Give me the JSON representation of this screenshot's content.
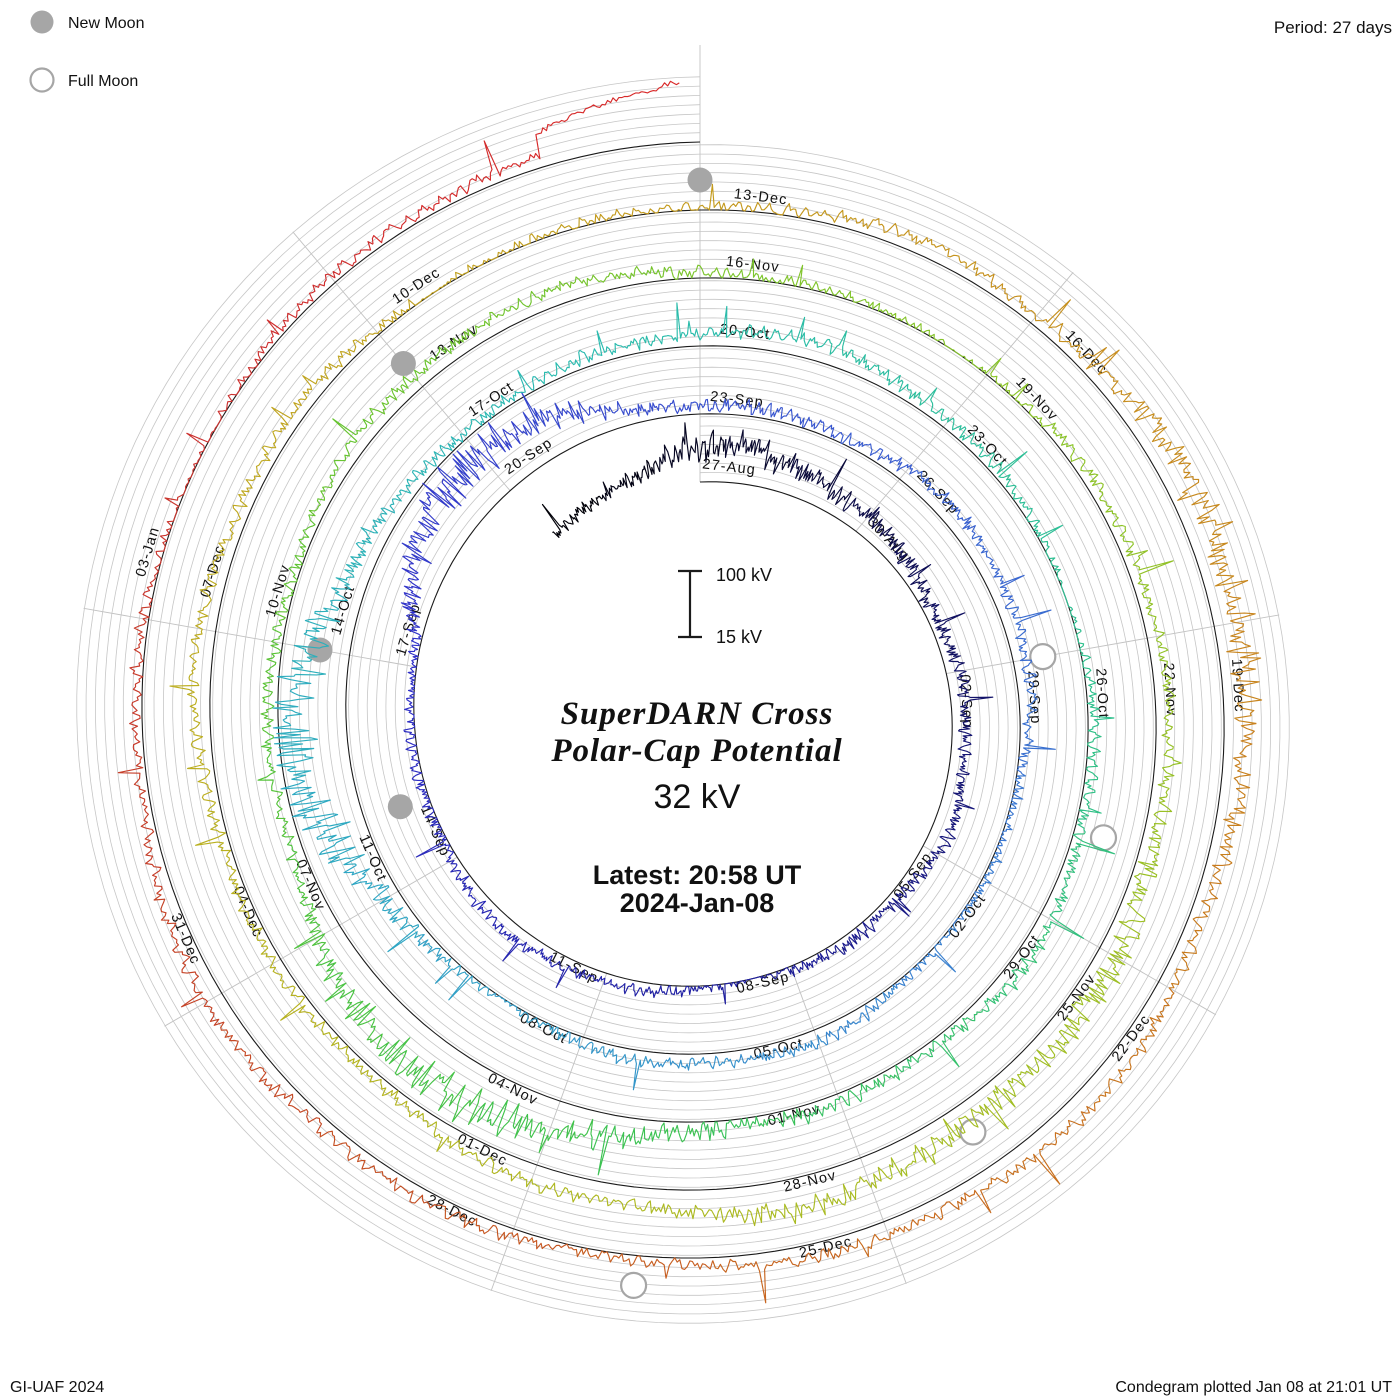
{
  "header": {
    "period_label": "Period: 27 days"
  },
  "legend": {
    "new_moon": "New Moon",
    "full_moon": "Full Moon"
  },
  "center": {
    "title_line1": "SuperDARN Cross",
    "title_line2": "Polar-Cap Potential",
    "current_value": "32 kV",
    "latest_line1": "Latest: 20:58 UT",
    "latest_line2": "2024-Jan-08",
    "scale_top_label": "100 kV",
    "scale_bottom_label": "15 kV"
  },
  "footer": {
    "left": "GI-UAF 2024",
    "right": "Condegram plotted Jan 08 at 21:01 UT"
  },
  "colors": {
    "accent_red": "#e04848",
    "grid_gray": "#c6c6c6",
    "spoke_gray": "#c2c2c2",
    "baseline_black": "#1b1b1b",
    "moon_gray": "#a6a6a6",
    "label_ink": "#2b2b2b"
  },
  "chart_data": {
    "type": "line",
    "variant": "condegram-spiral",
    "title": "SuperDARN Cross Polar-Cap Potential",
    "latest_value_kv": 32,
    "latest_time": "20:58 UT",
    "latest_date": "2024-Jan-08",
    "period_days": 27,
    "rotations_shown": 5,
    "scale": {
      "min_kv": 15,
      "max_kv": 100
    },
    "grid_kv_lines": [
      27,
      39,
      51,
      63,
      75,
      87,
      99
    ],
    "series_synthesized": true,
    "date_labels": [
      {
        "label": "27-Aug",
        "day": 0
      },
      {
        "label": "30-Aug",
        "day": 3
      },
      {
        "label": "02-Sep",
        "day": 6
      },
      {
        "label": "05-Sep",
        "day": 9
      },
      {
        "label": "08-Sep",
        "day": 12
      },
      {
        "label": "11-Sep",
        "day": 15
      },
      {
        "label": "14-Sep",
        "day": 18
      },
      {
        "label": "17-Sep",
        "day": 21
      },
      {
        "label": "20-Sep",
        "day": 24
      },
      {
        "label": "23-Sep",
        "day": 27
      },
      {
        "label": "26-Sep",
        "day": 30
      },
      {
        "label": "29-Sep",
        "day": 33
      },
      {
        "label": "02-Oct",
        "day": 36
      },
      {
        "label": "05-Oct",
        "day": 39
      },
      {
        "label": "08-Oct",
        "day": 42
      },
      {
        "label": "11-Oct",
        "day": 45
      },
      {
        "label": "14-Oct",
        "day": 48
      },
      {
        "label": "17-Oct",
        "day": 51
      },
      {
        "label": "20-Oct",
        "day": 54
      },
      {
        "label": "23-Oct",
        "day": 57
      },
      {
        "label": "26-Oct",
        "day": 60
      },
      {
        "label": "29-Oct",
        "day": 63
      },
      {
        "label": "01-Nov",
        "day": 66
      },
      {
        "label": "04-Nov",
        "day": 69
      },
      {
        "label": "07-Nov",
        "day": 72
      },
      {
        "label": "10-Nov",
        "day": 75
      },
      {
        "label": "13-Nov",
        "day": 78
      },
      {
        "label": "16-Nov",
        "day": 81
      },
      {
        "label": "19-Nov",
        "day": 84
      },
      {
        "label": "22-Nov",
        "day": 87
      },
      {
        "label": "25-Nov",
        "day": 90
      },
      {
        "label": "28-Nov",
        "day": 93
      },
      {
        "label": "01-Dec",
        "day": 96
      },
      {
        "label": "04-Dec",
        "day": 99
      },
      {
        "label": "07-Dec",
        "day": 102
      },
      {
        "label": "10-Dec",
        "day": 105
      },
      {
        "label": "13-Dec",
        "day": 108
      },
      {
        "label": "16-Dec",
        "day": 111
      },
      {
        "label": "19-Dec",
        "day": 114
      },
      {
        "label": "22-Dec",
        "day": 117
      },
      {
        "label": "25-Dec",
        "day": 120
      },
      {
        "label": "28-Dec",
        "day": 123
      },
      {
        "label": "31-Dec",
        "day": 126
      },
      {
        "label": "03-Jan",
        "day": 129
      }
    ],
    "moon_markers": {
      "new_moon_days": [
        19,
        48,
        78,
        108
      ],
      "full_moon_days": [
        33,
        62,
        92,
        122
      ]
    },
    "color_stops": [
      {
        "day": -3,
        "color": "#000000"
      },
      {
        "day": 5,
        "color": "#10105e"
      },
      {
        "day": 13,
        "color": "#1f1f9e"
      },
      {
        "day": 21,
        "color": "#3030c8"
      },
      {
        "day": 29,
        "color": "#3a5ad0"
      },
      {
        "day": 37,
        "color": "#3a80d0"
      },
      {
        "day": 45,
        "color": "#2fa6c4"
      },
      {
        "day": 53,
        "color": "#2bbcae"
      },
      {
        "day": 61,
        "color": "#2fc08a"
      },
      {
        "day": 69,
        "color": "#3ec24a"
      },
      {
        "day": 77,
        "color": "#68c430"
      },
      {
        "day": 85,
        "color": "#8cc428"
      },
      {
        "day": 93,
        "color": "#a8bc22"
      },
      {
        "day": 101,
        "color": "#bcae20"
      },
      {
        "day": 108,
        "color": "#c49a1e"
      },
      {
        "day": 114,
        "color": "#c8861e"
      },
      {
        "day": 120,
        "color": "#c86a1e"
      },
      {
        "day": 126,
        "color": "#c44426"
      },
      {
        "day": 131,
        "color": "#cc3030"
      },
      {
        "day": 135,
        "color": "#da2828"
      }
    ]
  }
}
